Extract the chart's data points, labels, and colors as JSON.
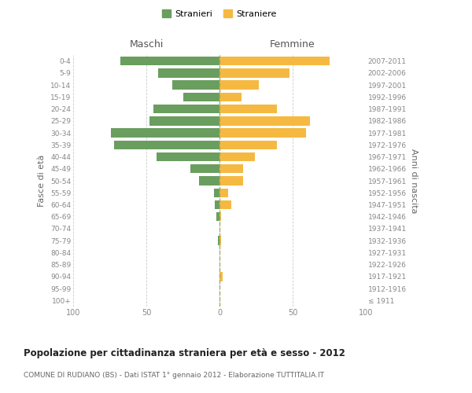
{
  "age_groups": [
    "100+",
    "95-99",
    "90-94",
    "85-89",
    "80-84",
    "75-79",
    "70-74",
    "65-69",
    "60-64",
    "55-59",
    "50-54",
    "45-49",
    "40-44",
    "35-39",
    "30-34",
    "25-29",
    "20-24",
    "15-19",
    "10-14",
    "5-9",
    "0-4"
  ],
  "birth_years": [
    "≤ 1911",
    "1912-1916",
    "1917-1921",
    "1922-1926",
    "1927-1931",
    "1932-1936",
    "1937-1941",
    "1942-1946",
    "1947-1951",
    "1952-1956",
    "1957-1961",
    "1962-1966",
    "1967-1971",
    "1972-1976",
    "1977-1981",
    "1982-1986",
    "1987-1991",
    "1992-1996",
    "1997-2001",
    "2002-2006",
    "2007-2011"
  ],
  "maschi": [
    0,
    0,
    0,
    0,
    0,
    1,
    0,
    2,
    3,
    4,
    14,
    20,
    43,
    72,
    74,
    48,
    45,
    25,
    32,
    42,
    68
  ],
  "femmine": [
    0,
    0,
    2,
    0,
    0,
    1,
    0,
    1,
    8,
    6,
    16,
    16,
    24,
    39,
    59,
    62,
    39,
    15,
    27,
    48,
    75
  ],
  "maschi_color": "#6a9e5f",
  "femmine_color": "#f5b942",
  "title": "Popolazione per cittadinanza straniera per età e sesso - 2012",
  "subtitle": "COMUNE DI RUDIANO (BS) - Dati ISTAT 1° gennaio 2012 - Elaborazione TUTTITALIA.IT",
  "xlabel_left": "Maschi",
  "xlabel_right": "Femmine",
  "ylabel_left": "Fasce di età",
  "ylabel_right": "Anni di nascita",
  "xlim": 100,
  "legend_stranieri": "Stranieri",
  "legend_straniere": "Straniere",
  "background_color": "#ffffff",
  "grid_color": "#cccccc"
}
